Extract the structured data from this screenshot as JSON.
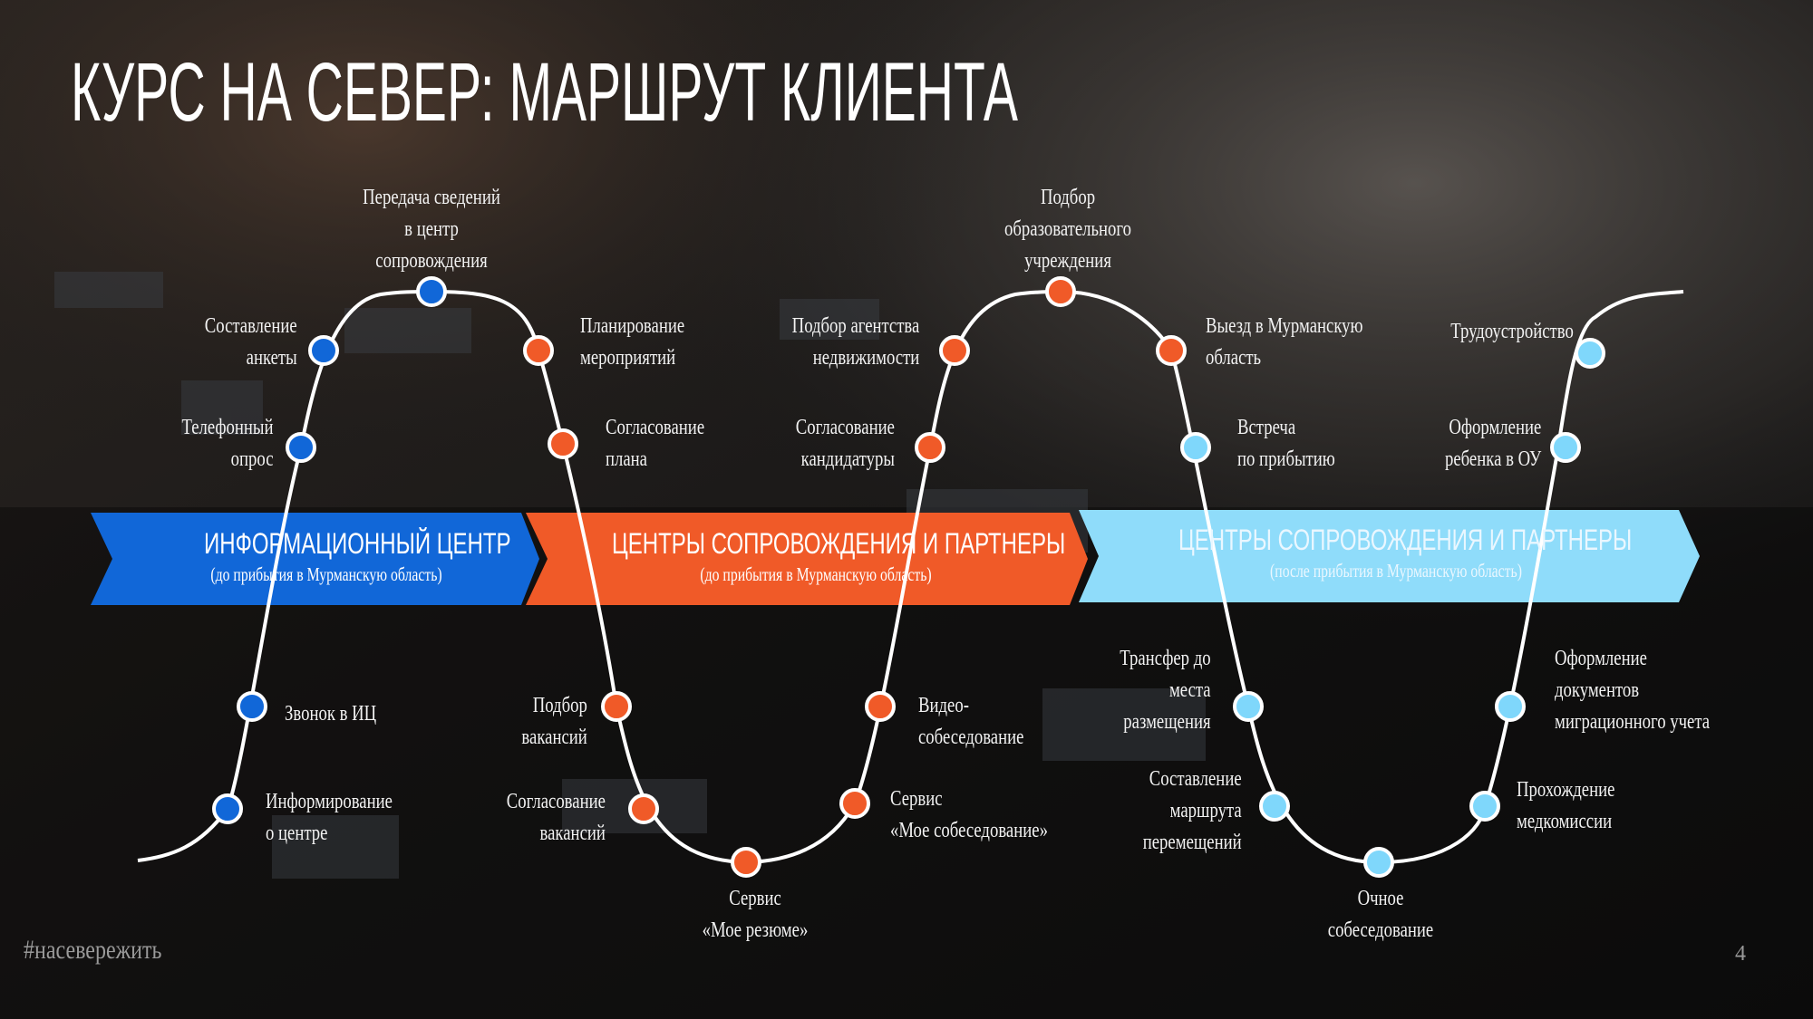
{
  "slide": {
    "title": "КУРС НА СЕВЕР: МАРШРУТ КЛИЕНТА",
    "hashtag": "#насевережить",
    "page_number": "4"
  },
  "colors": {
    "blue": "#1167d8",
    "orange": "#f05a28",
    "light_blue": "#7fd7fb"
  },
  "banners": [
    {
      "title": "ИНФОРМАЦИОННЫЙ ЦЕНТР",
      "subtitle": "(до прибытия в Мурманскую область)"
    },
    {
      "title": "ЦЕНТРЫ СОПРОВОЖДЕНИЯ И ПАРТНЕРЫ",
      "subtitle": "(до прибытия в Мурманскую область)"
    },
    {
      "title": "ЦЕНТРЫ СОПРОВОЖДЕНИЯ И ПАРТНЕРЫ",
      "subtitle": "(после прибытия в Мурманскую область)"
    }
  ],
  "steps": [
    {
      "id": "s1",
      "text": [
        "Информирование",
        "о центре"
      ],
      "phase": "blue"
    },
    {
      "id": "s2",
      "text": [
        "Звонок в ИЦ"
      ],
      "phase": "blue"
    },
    {
      "id": "s3",
      "text": [
        "Телефонный",
        "опрос"
      ],
      "phase": "blue"
    },
    {
      "id": "s4",
      "text": [
        "Составление",
        "анкеты"
      ],
      "phase": "blue"
    },
    {
      "id": "s5",
      "text": [
        "Передача сведений",
        "в центр",
        "сопровождения"
      ],
      "phase": "blue"
    },
    {
      "id": "s6",
      "text": [
        "Планирование",
        "мероприятий"
      ],
      "phase": "orange"
    },
    {
      "id": "s7",
      "text": [
        "Согласование",
        "плана"
      ],
      "phase": "orange"
    },
    {
      "id": "s8",
      "text": [
        "Подбор",
        "вакансий"
      ],
      "phase": "orange"
    },
    {
      "id": "s9",
      "text": [
        "Согласование",
        "вакансий"
      ],
      "phase": "orange"
    },
    {
      "id": "s10",
      "text": [
        "Сервис",
        "«Мое резюме»"
      ],
      "phase": "orange"
    },
    {
      "id": "s11",
      "text": [
        "Сервис",
        "«Мое собеседование»"
      ],
      "phase": "orange"
    },
    {
      "id": "s12",
      "text": [
        "Видео-",
        "собеседование"
      ],
      "phase": "orange"
    },
    {
      "id": "s13",
      "text": [
        "Согласование",
        "кандидатуры"
      ],
      "phase": "orange"
    },
    {
      "id": "s14",
      "text": [
        "Подбор агентства",
        "недвижимости"
      ],
      "phase": "orange"
    },
    {
      "id": "s15",
      "text": [
        "Подбор",
        "образовательного",
        "учреждения"
      ],
      "phase": "orange"
    },
    {
      "id": "s16",
      "text": [
        "Выезд в Мурманскую",
        "область"
      ],
      "phase": "orange"
    },
    {
      "id": "s17",
      "text": [
        "Встреча",
        "по прибытию"
      ],
      "phase": "light_blue"
    },
    {
      "id": "s18",
      "text": [
        "Трансфер до",
        "места",
        "размещения"
      ],
      "phase": "light_blue"
    },
    {
      "id": "s19",
      "text": [
        "Составление",
        "маршрута",
        "перемещений"
      ],
      "phase": "light_blue"
    },
    {
      "id": "s20",
      "text": [
        "Очное",
        "собеседование"
      ],
      "phase": "light_blue"
    },
    {
      "id": "s21",
      "text": [
        "Прохождение",
        "медкомиссии"
      ],
      "phase": "light_blue"
    },
    {
      "id": "s22",
      "text": [
        "Оформление",
        "документов",
        "миграционного учета"
      ],
      "phase": "light_blue"
    },
    {
      "id": "s23",
      "text": [
        "Оформление",
        "ребенка в ОУ"
      ],
      "phase": "light_blue"
    },
    {
      "id": "s24",
      "text": [
        "Трудоустройство"
      ],
      "phase": "light_blue"
    }
  ]
}
